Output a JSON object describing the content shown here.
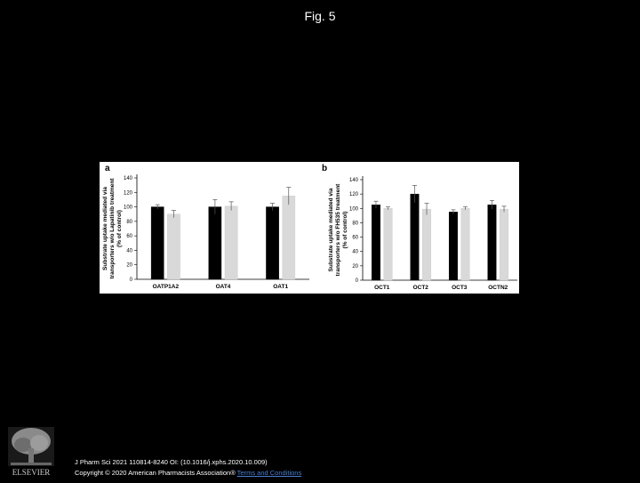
{
  "page": {
    "title": "Fig. 5"
  },
  "footer": {
    "citation": "J Pharm Sci 2021 110814-8240 OI: (10.1016/j.xphs.2020.10.009)",
    "copyright": "Copyright © 2020 American Pharmacists Association® ",
    "terms_link": "Terms and Conditions",
    "publisher_logo_text": "ELSEVIER"
  },
  "colors": {
    "series_1": "#000000",
    "series_2": "#d9d9d9",
    "background": "#000000",
    "link": "#4a7fd4"
  },
  "chart_data": [
    {
      "type": "bar",
      "panel_label": "a",
      "ylabel": [
        "Substrate uptake mediated via",
        "transporters w/o Lapatinib treatment",
        "(% of control)"
      ],
      "categories": [
        "OATP1A2",
        "OAT4",
        "OAT1"
      ],
      "ylim": [
        0,
        140
      ],
      "yticks": [
        0,
        20,
        40,
        60,
        80,
        100,
        120,
        140
      ],
      "series": [
        {
          "values": [
            100,
            100,
            100
          ],
          "errors": [
            3,
            10,
            5
          ]
        },
        {
          "values": [
            90,
            101,
            115
          ],
          "errors": [
            5,
            6,
            12
          ]
        }
      ],
      "legend": "none",
      "grid": false
    },
    {
      "type": "bar",
      "panel_label": "b",
      "ylabel": [
        "Substrate uptake mediated via",
        "transporters w/o FH535 treatment",
        "(% of control)"
      ],
      "categories": [
        "OCT1",
        "OCT2",
        "OCT3",
        "OCTN2"
      ],
      "ylim": [
        0,
        140
      ],
      "yticks": [
        0,
        20,
        40,
        60,
        80,
        100,
        120,
        140
      ],
      "series": [
        {
          "values": [
            105,
            120,
            95,
            105
          ],
          "errors": [
            5,
            12,
            3,
            6
          ]
        },
        {
          "values": [
            100,
            99,
            100,
            99
          ],
          "errors": [
            2,
            8,
            2,
            4
          ]
        }
      ],
      "legend": "none",
      "grid": false
    }
  ]
}
